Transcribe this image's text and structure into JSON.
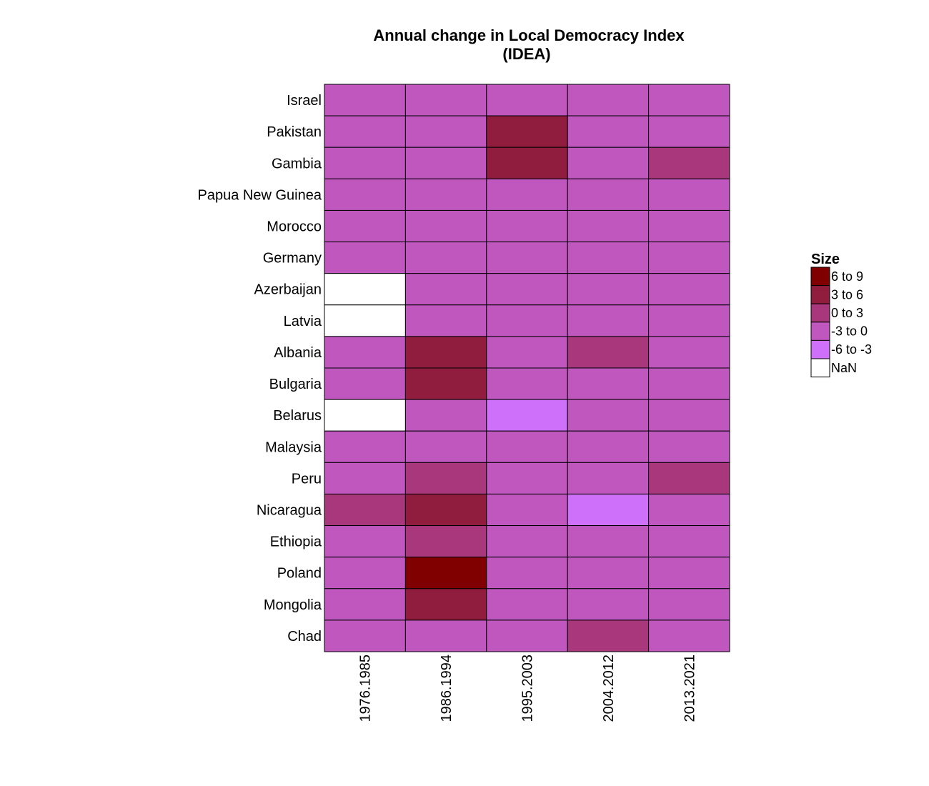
{
  "chart_data": {
    "type": "heatmap",
    "title": [
      "Annual change in Local Democracy Index",
      "(IDEA)"
    ],
    "rows": [
      "Israel",
      "Pakistan",
      "Gambia",
      "Papua New Guinea",
      "Morocco",
      "Germany",
      "Azerbaijan",
      "Latvia",
      "Albania",
      "Bulgaria",
      "Belarus",
      "Malaysia",
      "Peru",
      "Nicaragua",
      "Ethiopia",
      "Poland",
      "Mongolia",
      "Chad"
    ],
    "columns": [
      "1976.1985",
      "1986.1994",
      "1995.2003",
      "2004.2012",
      "2013.2021"
    ],
    "cell_bins": [
      [
        "-3 to 0",
        "-3 to 0",
        "-3 to 0",
        "-3 to 0",
        "-3 to 0"
      ],
      [
        "-3 to 0",
        "-3 to 0",
        "3 to 6",
        "-3 to 0",
        "-3 to 0"
      ],
      [
        "-3 to 0",
        "-3 to 0",
        "3 to 6",
        "-3 to 0",
        "0 to 3"
      ],
      [
        "-3 to 0",
        "-3 to 0",
        "-3 to 0",
        "-3 to 0",
        "-3 to 0"
      ],
      [
        "-3 to 0",
        "-3 to 0",
        "-3 to 0",
        "-3 to 0",
        "-3 to 0"
      ],
      [
        "-3 to 0",
        "-3 to 0",
        "-3 to 0",
        "-3 to 0",
        "-3 to 0"
      ],
      [
        "NaN",
        "-3 to 0",
        "-3 to 0",
        "-3 to 0",
        "-3 to 0"
      ],
      [
        "NaN",
        "-3 to 0",
        "-3 to 0",
        "-3 to 0",
        "-3 to 0"
      ],
      [
        "-3 to 0",
        "3 to 6",
        "-3 to 0",
        "0 to 3",
        "-3 to 0"
      ],
      [
        "-3 to 0",
        "3 to 6",
        "-3 to 0",
        "-3 to 0",
        "-3 to 0"
      ],
      [
        "NaN",
        "-3 to 0",
        "-6 to -3",
        "-3 to 0",
        "-3 to 0"
      ],
      [
        "-3 to 0",
        "-3 to 0",
        "-3 to 0",
        "-3 to 0",
        "-3 to 0"
      ],
      [
        "-3 to 0",
        "0 to 3",
        "-3 to 0",
        "-3 to 0",
        "0 to 3"
      ],
      [
        "0 to 3",
        "3 to 6",
        "-3 to 0",
        "-6 to -3",
        "-3 to 0"
      ],
      [
        "-3 to 0",
        "0 to 3",
        "-3 to 0",
        "-3 to 0",
        "-3 to 0"
      ],
      [
        "-3 to 0",
        "6 to 9",
        "-3 to 0",
        "-3 to 0",
        "-3 to 0"
      ],
      [
        "-3 to 0",
        "3 to 6",
        "-3 to 0",
        "-3 to 0",
        "-3 to 0"
      ],
      [
        "-3 to 0",
        "-3 to 0",
        "-3 to 0",
        "0 to 3",
        "-3 to 0"
      ]
    ],
    "legend": {
      "title": "Size",
      "placement": "right",
      "entries": [
        {
          "label": "6 to 9",
          "color": "#800000"
        },
        {
          "label": "3 to 6",
          "color": "#901c3e"
        },
        {
          "label": "0 to 3",
          "color": "#a8387b"
        },
        {
          "label": "-3 to 0",
          "color": "#bf57bf"
        },
        {
          "label": "-6 to -3",
          "color": "#cf70fa"
        },
        {
          "label": "NaN",
          "color": "#ffffff"
        }
      ]
    },
    "grid": false
  }
}
